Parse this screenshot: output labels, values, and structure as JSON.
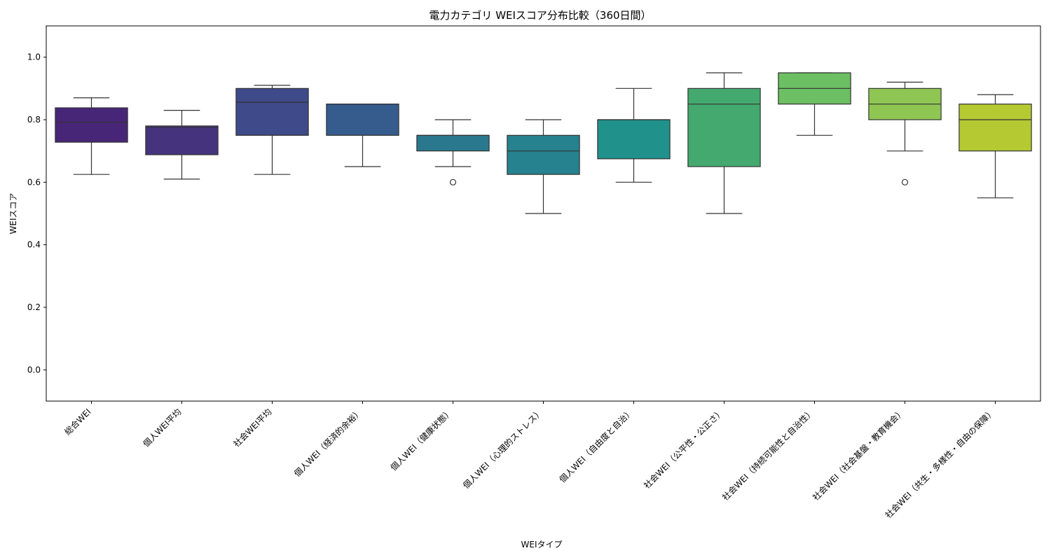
{
  "chart_data": {
    "type": "box",
    "title": "電力カテゴリ WEIスコア分布比較（360日間）",
    "xlabel": "WEIタイプ",
    "ylabel": "WEIスコア",
    "ylim": [
      -0.1,
      1.1
    ],
    "yticks": [
      "0.0",
      "0.2",
      "0.4",
      "0.6",
      "0.8",
      "1.0"
    ],
    "grid": false,
    "legend": "none",
    "categories": [
      "総合WEI",
      "個人WEI平均",
      "社会WEI平均",
      "個人WEI（経済的余裕）",
      "個人WEI（健康状態）",
      "個人WEI（心理的ストレス）",
      "個人WEI（自由度と自治）",
      "社会WEI（公平性・公正さ）",
      "社会WEI（持続可能性と自治性）",
      "社会WEI（社会基盤・教育機会）",
      "社会WEI（共生・多様性・自由の保障）"
    ],
    "boxes": [
      {
        "whisker_low": 0.625,
        "q1": 0.728,
        "median": 0.792,
        "q3": 0.838,
        "whisker_high": 0.87,
        "outliers": [],
        "color": "#482677"
      },
      {
        "whisker_low": 0.61,
        "q1": 0.688,
        "median": 0.775,
        "q3": 0.78,
        "whisker_high": 0.83,
        "outliers": [],
        "color": "#46337e"
      },
      {
        "whisker_low": 0.625,
        "q1": 0.75,
        "median": 0.856,
        "q3": 0.9,
        "whisker_high": 0.91,
        "outliers": [],
        "color": "#3e4a89"
      },
      {
        "whisker_low": 0.65,
        "q1": 0.75,
        "median": 0.85,
        "q3": 0.85,
        "whisker_high": 0.85,
        "outliers": [],
        "color": "#365c8d"
      },
      {
        "whisker_low": 0.65,
        "q1": 0.7,
        "median": 0.75,
        "q3": 0.75,
        "whisker_high": 0.8,
        "outliers": [
          0.6
        ],
        "color": "#2a788e"
      },
      {
        "whisker_low": 0.5,
        "q1": 0.625,
        "median": 0.7,
        "q3": 0.75,
        "whisker_high": 0.8,
        "outliers": [],
        "color": "#26828e"
      },
      {
        "whisker_low": 0.6,
        "q1": 0.675,
        "median": 0.8,
        "q3": 0.8,
        "whisker_high": 0.9,
        "outliers": [],
        "color": "#21918c"
      },
      {
        "whisker_low": 0.5,
        "q1": 0.65,
        "median": 0.85,
        "q3": 0.9,
        "whisker_high": 0.95,
        "outliers": [],
        "color": "#44a96f"
      },
      {
        "whisker_low": 0.75,
        "q1": 0.85,
        "median": 0.9,
        "q3": 0.95,
        "whisker_high": 0.95,
        "outliers": [],
        "color": "#6cbf62"
      },
      {
        "whisker_low": 0.7,
        "q1": 0.8,
        "median": 0.85,
        "q3": 0.9,
        "whisker_high": 0.92,
        "outliers": [
          0.6
        ],
        "color": "#8fc653"
      },
      {
        "whisker_low": 0.55,
        "q1": 0.7,
        "median": 0.8,
        "q3": 0.85,
        "whisker_high": 0.88,
        "outliers": [],
        "color": "#b5c932"
      }
    ]
  }
}
